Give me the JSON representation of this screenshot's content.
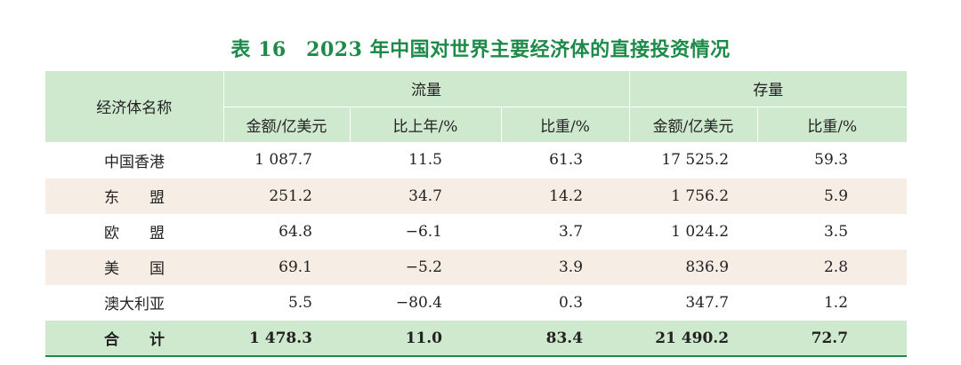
{
  "title": "表 16　2023 年中国对世界主要经济体的直接投资情况",
  "table": {
    "row_header": "经济体名称",
    "group_flow": "流量",
    "group_stock": "存量",
    "sub_headers": [
      "金额/亿美元",
      "比上年/%",
      "比重/%",
      "金额/亿美元",
      "比重/%"
    ],
    "rows": [
      {
        "name": "中国香港",
        "flow_amount": "1 087.7",
        "flow_yoy": "11.5",
        "flow_share": "61.3",
        "stock_amount": "17 525.2",
        "stock_share": "59.3"
      },
      {
        "name": "东　　盟",
        "flow_amount": "251.2",
        "flow_yoy": "34.7",
        "flow_share": "14.2",
        "stock_amount": "1 756.2",
        "stock_share": "5.9"
      },
      {
        "name": "欧　　盟",
        "flow_amount": "64.8",
        "flow_yoy": "−6.1",
        "flow_share": "3.7",
        "stock_amount": "1 024.2",
        "stock_share": "3.5"
      },
      {
        "name": "美　　国",
        "flow_amount": "69.1",
        "flow_yoy": "−5.2",
        "flow_share": "3.9",
        "stock_amount": "836.9",
        "stock_share": "2.8"
      },
      {
        "name": "澳大利亚",
        "flow_amount": "5.5",
        "flow_yoy": "−80.4",
        "flow_share": "0.3",
        "stock_amount": "347.7",
        "stock_share": "1.2"
      }
    ],
    "total": {
      "name": "合　　计",
      "flow_amount": "1 478.3",
      "flow_yoy": "11.0",
      "flow_share": "83.4",
      "stock_amount": "21 490.2",
      "stock_share": "72.7"
    }
  },
  "colors": {
    "title": "#1e8a4a",
    "header_bg": "#cfe9cf",
    "alt_row_bg": "#f6ede5",
    "rule": "#1e8a4a"
  }
}
